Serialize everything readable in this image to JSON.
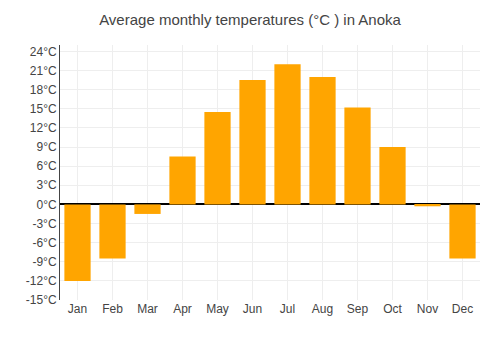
{
  "chart_data": {
    "type": "bar",
    "title": "Average monthly temperatures (°C ) in Anoka",
    "categories": [
      "Jan",
      "Feb",
      "Mar",
      "Apr",
      "May",
      "Jun",
      "Jul",
      "Aug",
      "Sep",
      "Oct",
      "Nov",
      "Dec"
    ],
    "values": [
      -12,
      -8.5,
      -1.5,
      7.5,
      14.5,
      19.5,
      22,
      20,
      15.2,
      9,
      -0.3,
      -8.5
    ],
    "color": "#FFA500",
    "ylim": [
      -15,
      25
    ],
    "yticks": [
      {
        "value": -15,
        "label": "-15°C"
      },
      {
        "value": -12,
        "label": "-12°C"
      },
      {
        "value": -9,
        "label": "-9°C"
      },
      {
        "value": -6,
        "label": "-6°C"
      },
      {
        "value": -3,
        "label": "-3°C"
      },
      {
        "value": 0,
        "label": "0°C"
      },
      {
        "value": 3,
        "label": "3°C"
      },
      {
        "value": 6,
        "label": "6°C"
      },
      {
        "value": 9,
        "label": "9°C"
      },
      {
        "value": 12,
        "label": "12°C"
      },
      {
        "value": 15,
        "label": "15°C"
      },
      {
        "value": 18,
        "label": "18°C"
      },
      {
        "value": 21,
        "label": "21°C"
      },
      {
        "value": 24,
        "label": "24°C"
      }
    ],
    "grid": true
  }
}
